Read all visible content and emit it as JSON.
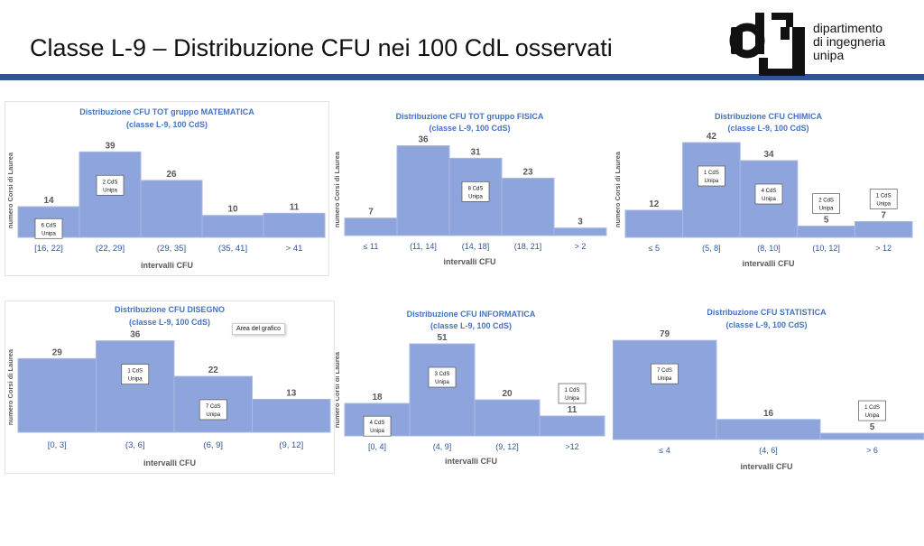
{
  "slide": {
    "title": "Classe L-9 – Distribuzione CFU nei 100 CdL osservati",
    "logo": {
      "lines": [
        "dipartimento",
        "di ingegneria",
        "unipa"
      ]
    },
    "tooltip": "Area del grafico"
  },
  "colors": {
    "bar": "#8ea4dc",
    "bar_edge": "#a9badf",
    "title": "#4472c4",
    "tick": "#2f5597",
    "value": "#595959",
    "rule": "#2f5597"
  },
  "chart_data": [
    {
      "type": "bar",
      "title": "Distribuzione CFU TOT gruppo MATEMATICA",
      "subtitle": "(classe L-9, 100 CdS)",
      "ylabel": "numero Corsi di Laurea",
      "xlabel": "intervalli CFU",
      "categories": [
        "[16, 22]",
        "(22, 29]",
        "(29, 35]",
        "(35, 41]",
        "> 41"
      ],
      "values": [
        14,
        39,
        26,
        10,
        11
      ],
      "ylim": [
        0,
        42
      ],
      "annotations": [
        {
          "category": 0,
          "lines": [
            "6 CdS",
            "Unipa"
          ]
        },
        {
          "category": 1,
          "lines": [
            "2 CdS",
            "Unipa"
          ]
        }
      ]
    },
    {
      "type": "bar",
      "title": "Distribuzione CFU TOT gruppo FISICA",
      "subtitle": "(classe L-9, 100 CdS)",
      "ylabel": "numero Corsi di Laurea",
      "xlabel": "intervalli CFU",
      "categories": [
        "≤ 11",
        "(11, 14]",
        "(14, 18]",
        "(18, 21]",
        "> 2"
      ],
      "values": [
        7,
        36,
        31,
        23,
        3
      ],
      "ylim": [
        0,
        38
      ],
      "annotations": [
        {
          "category": 2,
          "lines": [
            "8 CdS",
            "Unipa"
          ]
        }
      ]
    },
    {
      "type": "bar",
      "title": "Distribuzione CFU  CHIMICA",
      "subtitle": "(classe L-9, 100 CdS)",
      "ylabel": "numero Corsi di Laurea",
      "xlabel": "intervalli CFU",
      "categories": [
        "≤ 5",
        "(5, 8]",
        "(8, 10]",
        "(10, 12]",
        "> 12"
      ],
      "values": [
        12,
        42,
        34,
        5,
        7
      ],
      "ylim": [
        0,
        42
      ],
      "annotations": [
        {
          "category": 1,
          "lines": [
            "1 CdS",
            "Unipa"
          ]
        },
        {
          "category": 2,
          "lines": [
            "4 CdS",
            "Unipa"
          ]
        },
        {
          "category": 3,
          "lines": [
            "2 CdS",
            "Unipa"
          ]
        },
        {
          "category": 4,
          "lines": [
            "1 CdS",
            "Unipa"
          ]
        }
      ]
    },
    {
      "type": "bar",
      "title": "Distribuzione CFU  DISEGNO",
      "subtitle": "(classe L-9, 100 CdS)",
      "ylabel": "numero Corsi di Laurea",
      "xlabel": "intervalli CFU",
      "categories": [
        "[0, 3]",
        "(3, 6]",
        "(6, 9]",
        "(9, 12]"
      ],
      "values": [
        29,
        36,
        22,
        13
      ],
      "ylim": [
        0,
        38
      ],
      "annotations": [
        {
          "category": 1,
          "lines": [
            "1 CdS",
            "Unipa"
          ]
        },
        {
          "category": 2,
          "lines": [
            "7 CdS",
            "Unipa"
          ]
        }
      ]
    },
    {
      "type": "bar",
      "title": "Distribuzione CFU  INFORMATICA",
      "subtitle": "(classe L-9, 100 CdS)",
      "ylabel": "numero Corsi di Laurea",
      "xlabel": "intervalli CFU",
      "categories": [
        "[0, 4]",
        "(4, 9]",
        "(9, 12]",
        ">12"
      ],
      "values": [
        18,
        51,
        20,
        11
      ],
      "ylim": [
        0,
        54
      ],
      "annotations": [
        {
          "category": 0,
          "lines": [
            "4 CdS",
            "Unipa"
          ]
        },
        {
          "category": 1,
          "lines": [
            "3 CdS",
            "Unipa"
          ]
        },
        {
          "category": 3,
          "lines": [
            "1 CdS",
            "Unipa"
          ]
        }
      ]
    },
    {
      "type": "bar",
      "title": "Distribuzione CFU  STATISTICA",
      "subtitle": "(classe L-9, 100 CdS)",
      "ylabel": "numero Corsi di Laurea",
      "xlabel": "intervalli CFU",
      "categories": [
        "≤ 4",
        "(4, 6]",
        "> 6"
      ],
      "values": [
        79,
        16,
        5
      ],
      "ylim": [
        0,
        82
      ],
      "annotations": [
        {
          "category": 0,
          "lines": [
            "7 CdS",
            "Unipa"
          ]
        },
        {
          "category": 2,
          "lines": [
            "1 CdS",
            "Unipa"
          ]
        }
      ]
    }
  ]
}
